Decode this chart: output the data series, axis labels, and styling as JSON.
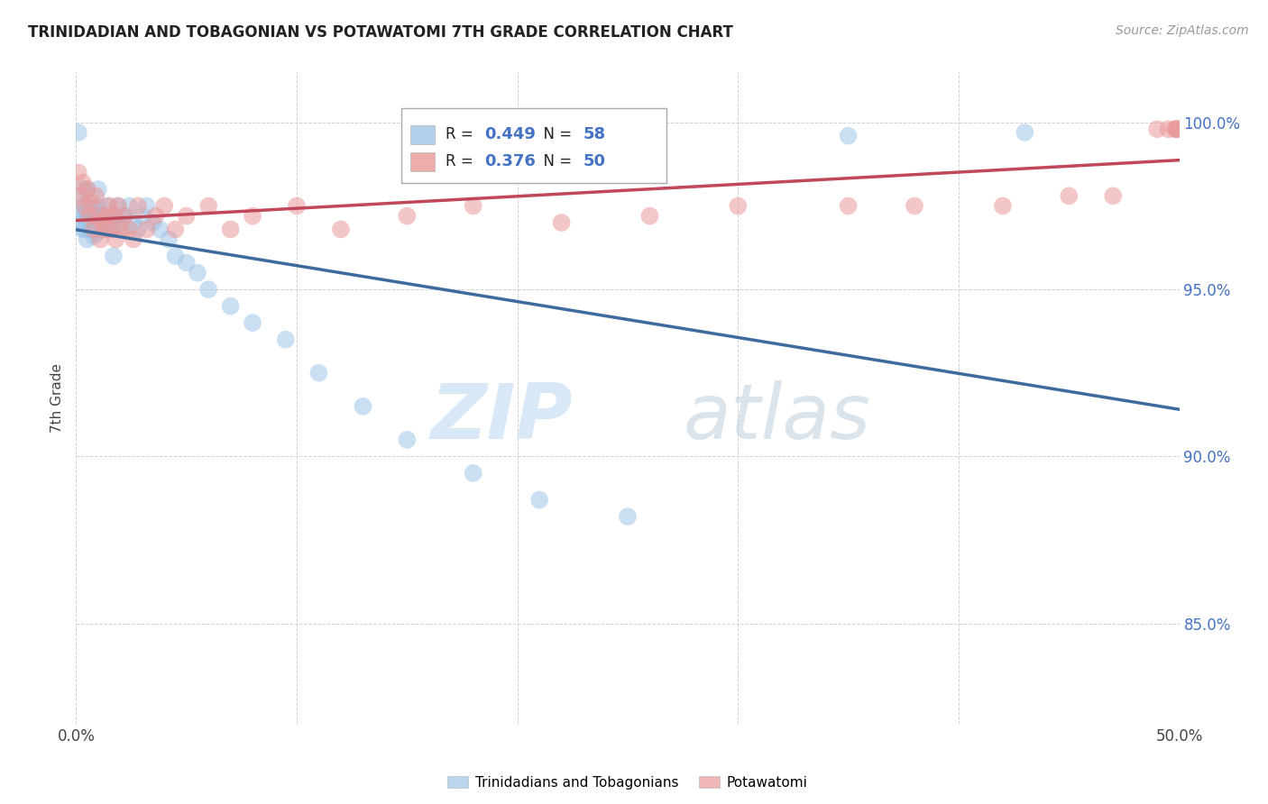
{
  "title": "TRINIDADIAN AND TOBAGONIAN VS POTAWATOMI 7TH GRADE CORRELATION CHART",
  "source": "Source: ZipAtlas.com",
  "ylabel": "7th Grade",
  "xlim": [
    0.0,
    0.5
  ],
  "ylim": [
    0.82,
    1.015
  ],
  "xticks": [
    0.0,
    0.1,
    0.2,
    0.3,
    0.4,
    0.5
  ],
  "xticklabels": [
    "0.0%",
    "",
    "",
    "",
    "",
    "50.0%"
  ],
  "yticks": [
    0.85,
    0.9,
    0.95,
    1.0
  ],
  "yticklabels": [
    "85.0%",
    "90.0%",
    "95.0%",
    "100.0%"
  ],
  "blue_color": "#9fc5e8",
  "pink_color": "#ea9999",
  "blue_line_color": "#3d6b9e",
  "pink_line_color": "#c0485a",
  "legend_label_blue": "Trinidadians and Tobagonians",
  "legend_label_pink": "Potawatomi",
  "R_blue": 0.449,
  "N_blue": 58,
  "R_pink": 0.376,
  "N_pink": 50,
  "blue_scatter_x": [
    0.001,
    0.002,
    0.002,
    0.003,
    0.003,
    0.003,
    0.004,
    0.004,
    0.004,
    0.005,
    0.005,
    0.005,
    0.006,
    0.006,
    0.006,
    0.007,
    0.007,
    0.008,
    0.008,
    0.009,
    0.009,
    0.01,
    0.01,
    0.011,
    0.012,
    0.013,
    0.014,
    0.015,
    0.016,
    0.017,
    0.018,
    0.019,
    0.02,
    0.021,
    0.022,
    0.024,
    0.026,
    0.028,
    0.03,
    0.032,
    0.035,
    0.038,
    0.042,
    0.045,
    0.05,
    0.055,
    0.06,
    0.07,
    0.08,
    0.095,
    0.11,
    0.13,
    0.15,
    0.18,
    0.21,
    0.25,
    0.35,
    0.43
  ],
  "blue_scatter_y": [
    0.997,
    0.97,
    0.975,
    0.968,
    0.972,
    0.98,
    0.975,
    0.968,
    0.972,
    0.98,
    0.965,
    0.972,
    0.975,
    0.968,
    0.972,
    0.969,
    0.973,
    0.966,
    0.971,
    0.974,
    0.967,
    0.98,
    0.975,
    0.97,
    0.968,
    0.972,
    0.975,
    0.97,
    0.968,
    0.96,
    0.972,
    0.975,
    0.97,
    0.968,
    0.972,
    0.975,
    0.97,
    0.968,
    0.972,
    0.975,
    0.97,
    0.968,
    0.965,
    0.96,
    0.958,
    0.955,
    0.95,
    0.945,
    0.94,
    0.935,
    0.925,
    0.915,
    0.905,
    0.895,
    0.887,
    0.882,
    0.996,
    0.997
  ],
  "pink_scatter_x": [
    0.001,
    0.002,
    0.003,
    0.004,
    0.005,
    0.006,
    0.007,
    0.008,
    0.009,
    0.01,
    0.011,
    0.012,
    0.013,
    0.014,
    0.015,
    0.016,
    0.017,
    0.018,
    0.019,
    0.02,
    0.022,
    0.024,
    0.026,
    0.028,
    0.032,
    0.036,
    0.04,
    0.045,
    0.05,
    0.06,
    0.07,
    0.08,
    0.1,
    0.12,
    0.15,
    0.18,
    0.22,
    0.26,
    0.3,
    0.35,
    0.38,
    0.42,
    0.45,
    0.47,
    0.49,
    0.495,
    0.498,
    0.499,
    0.499,
    0.499
  ],
  "pink_scatter_y": [
    0.985,
    0.978,
    0.982,
    0.975,
    0.98,
    0.972,
    0.976,
    0.968,
    0.978,
    0.972,
    0.965,
    0.97,
    0.968,
    0.972,
    0.975,
    0.968,
    0.972,
    0.965,
    0.975,
    0.968,
    0.972,
    0.968,
    0.965,
    0.975,
    0.968,
    0.972,
    0.975,
    0.968,
    0.972,
    0.975,
    0.968,
    0.972,
    0.975,
    0.968,
    0.972,
    0.975,
    0.97,
    0.972,
    0.975,
    0.975,
    0.975,
    0.975,
    0.978,
    0.978,
    0.998,
    0.998,
    0.998,
    0.998,
    0.998,
    0.998
  ],
  "watermark_zip": "ZIP",
  "watermark_atlas": "atlas",
  "background_color": "#ffffff",
  "grid_color": "#cccccc",
  "tick_color": "#4472c4"
}
